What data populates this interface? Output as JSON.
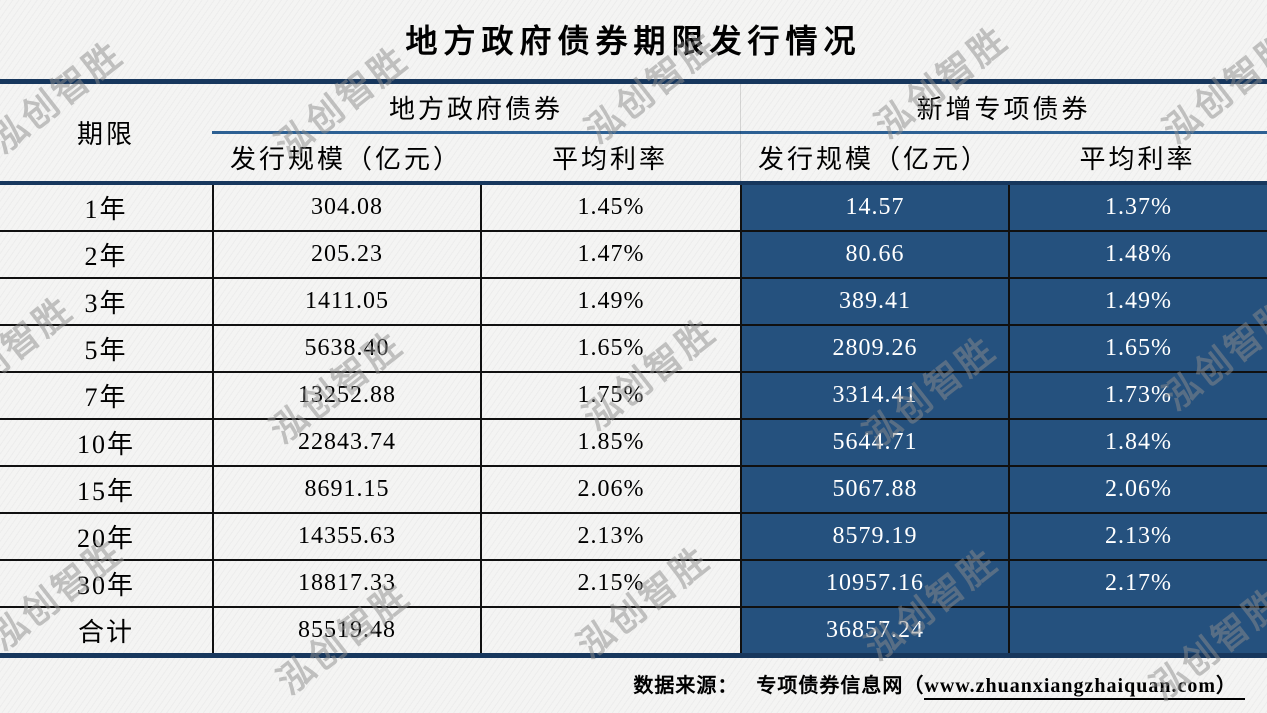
{
  "title": "地方政府债券期限发行情况",
  "watermark": {
    "text": "泓创智胜"
  },
  "table": {
    "col_term_header": "期限",
    "groups": [
      {
        "label": "地方政府债券",
        "sub": [
          "发行规模（亿元）",
          "平均利率"
        ]
      },
      {
        "label": "新增专项债券",
        "sub": [
          "发行规模（亿元）",
          "平均利率"
        ]
      }
    ],
    "rows": [
      {
        "term": "1年",
        "lg_scale": "304.08",
        "lg_rate": "1.45%",
        "sp_scale": "14.57",
        "sp_rate": "1.37%"
      },
      {
        "term": "2年",
        "lg_scale": "205.23",
        "lg_rate": "1.47%",
        "sp_scale": "80.66",
        "sp_rate": "1.48%"
      },
      {
        "term": "3年",
        "lg_scale": "1411.05",
        "lg_rate": "1.49%",
        "sp_scale": "389.41",
        "sp_rate": "1.49%"
      },
      {
        "term": "5年",
        "lg_scale": "5638.40",
        "lg_rate": "1.65%",
        "sp_scale": "2809.26",
        "sp_rate": "1.65%"
      },
      {
        "term": "7年",
        "lg_scale": "13252.88",
        "lg_rate": "1.75%",
        "sp_scale": "3314.41",
        "sp_rate": "1.73%"
      },
      {
        "term": "10年",
        "lg_scale": "22843.74",
        "lg_rate": "1.85%",
        "sp_scale": "5644.71",
        "sp_rate": "1.84%"
      },
      {
        "term": "15年",
        "lg_scale": "8691.15",
        "lg_rate": "2.06%",
        "sp_scale": "5067.88",
        "sp_rate": "2.06%"
      },
      {
        "term": "20年",
        "lg_scale": "14355.63",
        "lg_rate": "2.13%",
        "sp_scale": "8579.19",
        "sp_rate": "2.13%"
      },
      {
        "term": "30年",
        "lg_scale": "18817.33",
        "lg_rate": "2.15%",
        "sp_scale": "10957.16",
        "sp_rate": "2.17%"
      },
      {
        "term": "合计",
        "lg_scale": "85519.48",
        "lg_rate": "",
        "sp_scale": "36857.24",
        "sp_rate": ""
      }
    ]
  },
  "source": {
    "label": "数据来源：",
    "site_prefix": "专项债券信息网（",
    "url": "www.zhuanxiangzhaiquan.com",
    "suffix": "）"
  },
  "colors": {
    "dark_cell": "#25517E",
    "accent_dark": "#17375D",
    "accent_blue": "#2D6093",
    "background": "#F4F4F3",
    "watermark_gray": "#8C8C8C"
  },
  "chart_data": {
    "type": "table",
    "title": "地方政府债券期限发行情况",
    "column_groups": [
      "地方政府债券",
      "新增专项债券"
    ],
    "columns": [
      "期限",
      "地方政府债券-发行规模（亿元）",
      "地方政府债券-平均利率",
      "新增专项债券-发行规模（亿元）",
      "新增专项债券-平均利率"
    ],
    "rows": [
      [
        "1年",
        304.08,
        "1.45%",
        14.57,
        "1.37%"
      ],
      [
        "2年",
        205.23,
        "1.47%",
        80.66,
        "1.48%"
      ],
      [
        "3年",
        1411.05,
        "1.49%",
        389.41,
        "1.49%"
      ],
      [
        "5年",
        5638.4,
        "1.65%",
        2809.26,
        "1.65%"
      ],
      [
        "7年",
        13252.88,
        "1.75%",
        3314.41,
        "1.73%"
      ],
      [
        "10年",
        22843.74,
        "1.85%",
        5644.71,
        "1.84%"
      ],
      [
        "15年",
        8691.15,
        "2.06%",
        5067.88,
        "2.06%"
      ],
      [
        "20年",
        14355.63,
        "2.13%",
        8579.19,
        "2.13%"
      ],
      [
        "30年",
        18817.33,
        "2.15%",
        10957.16,
        "2.17%"
      ],
      [
        "合计",
        85519.48,
        "",
        36857.24,
        ""
      ]
    ],
    "source": "数据来源： 专项债券信息网（www.zhuanxiangzhaiquan.com）"
  }
}
